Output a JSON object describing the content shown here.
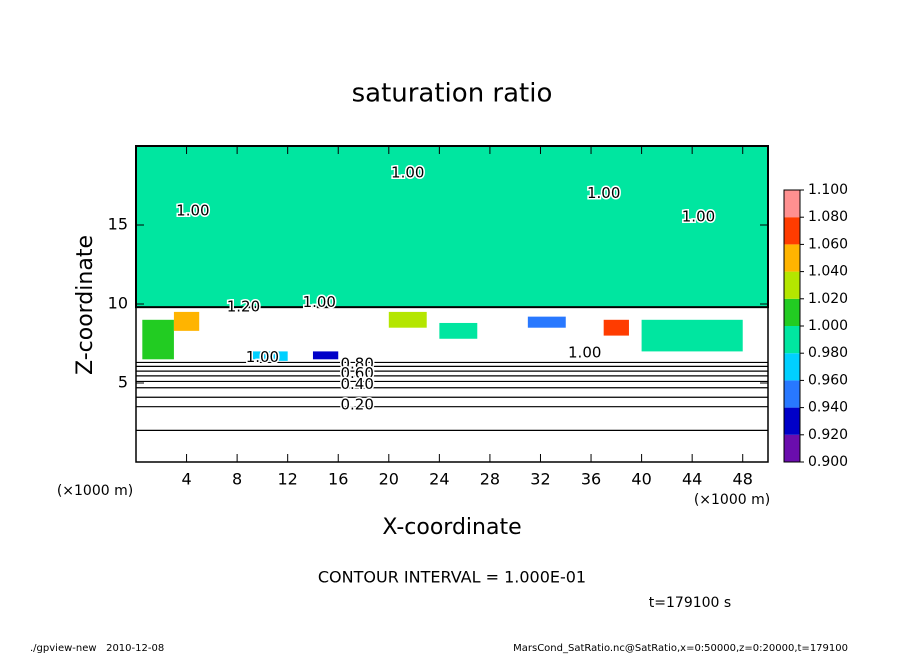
{
  "chart_data": {
    "type": "contour",
    "title": "saturation ratio",
    "xlabel": "X-coordinate",
    "ylabel": "Z-coordinate",
    "x_unit": "(×1000 m)",
    "y_unit": "(×1000 m)",
    "xlim": [
      0,
      50
    ],
    "ylim": [
      0,
      20
    ],
    "xticks": [
      4,
      8,
      12,
      16,
      20,
      24,
      28,
      32,
      36,
      40,
      44,
      48
    ],
    "yticks": [
      5,
      10,
      15
    ],
    "colorbar": {
      "levels": [
        {
          "value": 0.9,
          "label": "0.900"
        },
        {
          "value": 0.92,
          "label": "0.920"
        },
        {
          "value": 0.94,
          "label": "0.940"
        },
        {
          "value": 0.96,
          "label": "0.960"
        },
        {
          "value": 0.98,
          "label": "0.980"
        },
        {
          "value": 1.0,
          "label": "1.000"
        },
        {
          "value": 1.02,
          "label": "1.020"
        },
        {
          "value": 1.04,
          "label": "1.040"
        },
        {
          "value": 1.06,
          "label": "1.060"
        },
        {
          "value": 1.08,
          "label": "1.080"
        },
        {
          "value": 1.1,
          "label": "1.100"
        }
      ],
      "colors": [
        "#6a0dad",
        "#0000c8",
        "#2878ff",
        "#00d0ff",
        "#00e6a0",
        "#22cc22",
        "#b4e600",
        "#ffb400",
        "#ff3c00",
        "#ff9090"
      ]
    },
    "regions": [
      {
        "xmin": 0,
        "xmax": 50,
        "zmin": 9.8,
        "zmax": 20,
        "value": 0.99
      },
      {
        "xmin": 0.5,
        "xmax": 3,
        "zmin": 6.5,
        "zmax": 9,
        "value": 1.01
      },
      {
        "xmin": 3,
        "xmax": 5,
        "zmin": 8.3,
        "zmax": 9.5,
        "value": 1.05
      },
      {
        "xmin": 9,
        "xmax": 12,
        "zmin": 6.4,
        "zmax": 7,
        "value": 0.97
      },
      {
        "xmin": 14,
        "xmax": 16,
        "zmin": 6.5,
        "zmax": 7,
        "value": 0.93
      },
      {
        "xmin": 20,
        "xmax": 23,
        "zmin": 8.5,
        "zmax": 9.5,
        "value": 1.03
      },
      {
        "xmin": 24,
        "xmax": 27,
        "zmin": 7.8,
        "zmax": 8.8,
        "value": 0.99
      },
      {
        "xmin": 31,
        "xmax": 34,
        "zmin": 8.5,
        "zmax": 9.2,
        "value": 0.95
      },
      {
        "xmin": 37,
        "xmax": 39,
        "zmin": 8,
        "zmax": 9,
        "value": 1.07
      },
      {
        "xmin": 40,
        "xmax": 48,
        "zmin": 7,
        "zmax": 9,
        "value": 0.99
      }
    ],
    "contours": [
      {
        "level": 0.1,
        "z": 2.0
      },
      {
        "level": 0.2,
        "z": 3.5
      },
      {
        "level": 0.3,
        "z": 4.1
      },
      {
        "level": 0.4,
        "z": 4.7
      },
      {
        "level": 0.5,
        "z": 5.1
      },
      {
        "level": 0.6,
        "z": 5.45
      },
      {
        "level": 0.7,
        "z": 5.75
      },
      {
        "level": 0.8,
        "z": 6.05
      },
      {
        "level": 0.9,
        "z": 6.3
      }
    ],
    "contour_labels": [
      {
        "x": 4.5,
        "z": 15.9,
        "label": "1.00"
      },
      {
        "x": 21.5,
        "z": 18.3,
        "label": "1.00"
      },
      {
        "x": 37,
        "z": 17,
        "label": "1.00"
      },
      {
        "x": 44.5,
        "z": 15.5,
        "label": "1.00"
      },
      {
        "x": 14.5,
        "z": 10.1,
        "label": "1.00"
      },
      {
        "x": 8.5,
        "z": 9.8,
        "label": "1.20"
      },
      {
        "x": 10,
        "z": 6.6,
        "label": "1.00"
      },
      {
        "x": 35.5,
        "z": 6.9,
        "label": "1.00"
      },
      {
        "x": 17.5,
        "z": 6.2,
        "label": "0.80"
      },
      {
        "x": 17.5,
        "z": 5.6,
        "label": "0.60"
      },
      {
        "x": 17.5,
        "z": 4.9,
        "label": "0.40"
      },
      {
        "x": 17.5,
        "z": 3.6,
        "label": "0.20"
      }
    ],
    "contour_interval_text": "CONTOUR INTERVAL = 1.000E-01",
    "time_text": "t=179100 s",
    "footer_left": "./gpview-new   2010-12-08",
    "footer_right": "MarsCond_SatRatio.nc@SatRatio,x=0:50000,z=0:20000,t=179100"
  }
}
